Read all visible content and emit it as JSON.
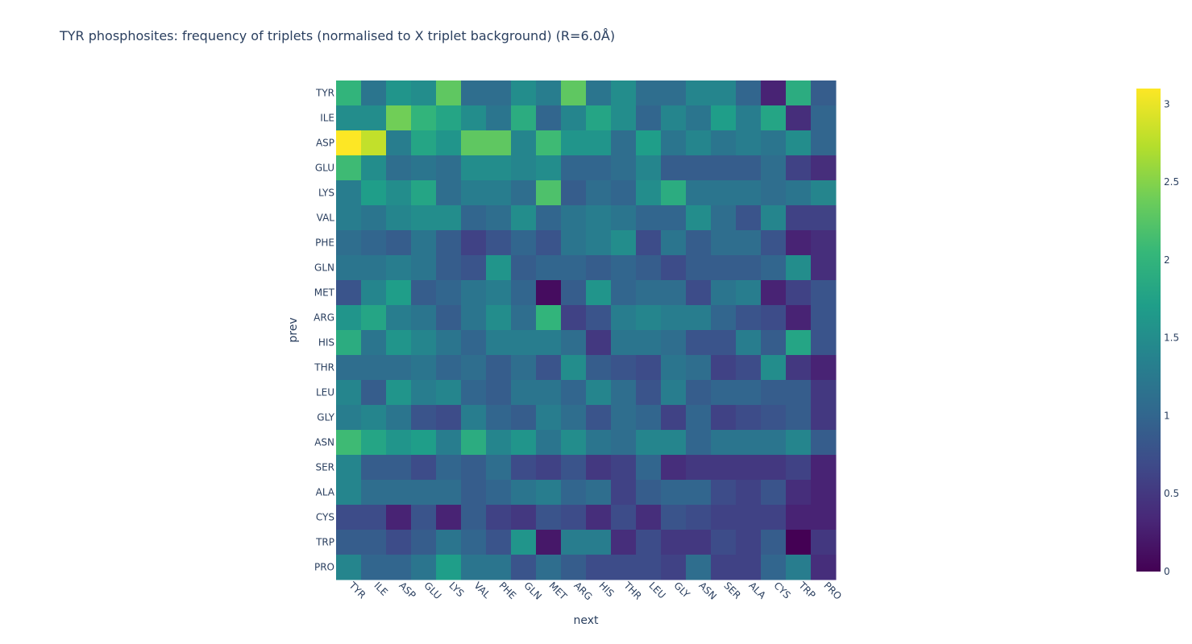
{
  "chart_data": {
    "type": "heatmap",
    "title": "TYR phosphosites: frequency of triplets (normalised to X triplet background) (R=6.0Å)",
    "xlabel": "next",
    "ylabel": "prev",
    "x": [
      "TYR",
      "ILE",
      "ASP",
      "GLU",
      "LYS",
      "VAL",
      "PHE",
      "GLN",
      "MET",
      "ARG",
      "HIS",
      "THR",
      "LEU",
      "GLY",
      "ASN",
      "SER",
      "ALA",
      "CYS",
      "TRP",
      "PRO"
    ],
    "y": [
      "TYR",
      "ILE",
      "ASP",
      "GLU",
      "LYS",
      "VAL",
      "PHE",
      "GLN",
      "MET",
      "ARG",
      "HIS",
      "THR",
      "LEU",
      "GLY",
      "ASN",
      "SER",
      "ALA",
      "CYS",
      "TRP",
      "PRO"
    ],
    "zmin": 0,
    "zmax": 3.1,
    "colorscale": "Viridis",
    "colorbar_ticks": [
      0,
      0.5,
      1,
      1.5,
      2,
      2.5,
      3
    ],
    "colorbar_tick_labels": [
      "0",
      "0.5",
      "1",
      "1.5",
      "2",
      "2.5",
      "3"
    ],
    "z": [
      [
        2.0,
        1.2,
        1.6,
        1.5,
        2.3,
        1.1,
        1.1,
        1.5,
        1.3,
        2.3,
        1.2,
        1.5,
        1.1,
        1.1,
        1.4,
        1.4,
        1.0,
        0.3,
        1.9,
        0.9
      ],
      [
        1.5,
        1.5,
        2.4,
        2.0,
        1.8,
        1.5,
        1.2,
        1.9,
        1.0,
        1.4,
        1.8,
        1.5,
        1.0,
        1.4,
        1.2,
        1.7,
        1.3,
        1.8,
        0.4,
        1.0
      ],
      [
        3.1,
        2.8,
        1.3,
        1.8,
        1.6,
        2.3,
        2.3,
        1.4,
        2.1,
        1.6,
        1.6,
        1.1,
        1.7,
        1.2,
        1.4,
        1.2,
        1.3,
        1.2,
        1.5,
        1.0
      ],
      [
        2.1,
        1.5,
        1.1,
        1.2,
        1.1,
        1.5,
        1.5,
        1.4,
        1.5,
        1.0,
        1.0,
        1.1,
        1.4,
        0.9,
        0.9,
        0.9,
        0.9,
        1.1,
        0.6,
        0.4
      ],
      [
        1.3,
        1.7,
        1.5,
        1.8,
        1.1,
        1.3,
        1.3,
        1.1,
        2.2,
        0.9,
        1.1,
        1.0,
        1.5,
        1.9,
        1.2,
        1.2,
        1.2,
        1.1,
        1.2,
        1.4
      ],
      [
        1.3,
        1.2,
        1.4,
        1.5,
        1.5,
        1.0,
        1.1,
        1.5,
        1.0,
        1.2,
        1.3,
        1.2,
        1.0,
        1.0,
        1.5,
        1.1,
        0.8,
        1.4,
        0.6,
        0.6
      ],
      [
        1.1,
        1.0,
        0.9,
        1.2,
        0.9,
        0.6,
        0.8,
        1.0,
        0.8,
        1.2,
        1.3,
        1.5,
        0.7,
        1.2,
        0.9,
        1.1,
        1.1,
        0.8,
        0.3,
        0.4
      ],
      [
        1.2,
        1.2,
        1.3,
        1.2,
        0.9,
        0.8,
        1.6,
        0.9,
        1.0,
        1.0,
        0.9,
        1.0,
        0.9,
        0.7,
        0.9,
        0.9,
        0.9,
        1.0,
        1.5,
        0.4
      ],
      [
        0.8,
        1.4,
        1.7,
        0.9,
        1.0,
        1.2,
        1.3,
        1.0,
        0.1,
        0.9,
        1.6,
        1.0,
        1.1,
        1.1,
        0.7,
        1.2,
        1.3,
        0.3,
        0.6,
        0.8
      ],
      [
        1.6,
        1.8,
        1.3,
        1.2,
        0.9,
        1.2,
        1.5,
        1.1,
        2.0,
        0.6,
        0.8,
        1.3,
        1.4,
        1.3,
        1.3,
        1.0,
        0.8,
        0.7,
        0.3,
        0.8
      ],
      [
        1.9,
        1.2,
        1.6,
        1.4,
        1.2,
        1.0,
        1.3,
        1.3,
        1.3,
        1.1,
        0.5,
        1.2,
        1.2,
        1.1,
        0.8,
        0.8,
        1.3,
        0.9,
        1.8,
        0.8
      ],
      [
        1.1,
        1.1,
        1.1,
        1.2,
        1.0,
        1.1,
        0.9,
        1.1,
        0.8,
        1.5,
        0.9,
        0.8,
        0.7,
        1.2,
        1.1,
        0.6,
        0.7,
        1.5,
        0.5,
        0.3
      ],
      [
        1.4,
        0.9,
        1.6,
        1.3,
        1.4,
        1.0,
        0.9,
        1.2,
        1.2,
        1.0,
        1.4,
        1.1,
        0.8,
        1.3,
        0.9,
        1.0,
        1.0,
        0.9,
        0.9,
        0.5
      ],
      [
        1.3,
        1.4,
        1.2,
        0.8,
        0.7,
        1.3,
        1.0,
        0.9,
        1.3,
        1.1,
        0.8,
        1.1,
        1.0,
        0.6,
        1.0,
        0.6,
        0.7,
        0.8,
        0.9,
        0.5
      ],
      [
        2.1,
        1.8,
        1.6,
        1.7,
        1.3,
        1.9,
        1.4,
        1.6,
        1.2,
        1.5,
        1.2,
        1.1,
        1.4,
        1.4,
        1.0,
        1.2,
        1.2,
        1.2,
        1.4,
        0.9
      ],
      [
        1.4,
        0.9,
        0.9,
        0.7,
        1.0,
        0.9,
        1.1,
        0.7,
        0.6,
        0.8,
        0.5,
        0.6,
        1.0,
        0.4,
        0.5,
        0.5,
        0.5,
        0.5,
        0.6,
        0.3
      ],
      [
        1.4,
        1.1,
        1.1,
        1.1,
        1.1,
        0.9,
        1.0,
        1.2,
        1.3,
        1.0,
        1.1,
        0.6,
        0.9,
        1.0,
        1.0,
        0.7,
        0.6,
        0.8,
        0.4,
        0.3
      ],
      [
        0.7,
        0.7,
        0.3,
        0.8,
        0.3,
        0.9,
        0.6,
        0.5,
        0.8,
        0.7,
        0.4,
        0.7,
        0.4,
        0.8,
        0.7,
        0.6,
        0.6,
        0.6,
        0.3,
        0.3
      ],
      [
        0.9,
        0.9,
        0.7,
        0.9,
        1.2,
        1.0,
        0.8,
        1.6,
        0.2,
        1.3,
        1.3,
        0.4,
        0.7,
        0.5,
        0.5,
        0.7,
        0.6,
        0.9,
        0.0,
        0.5
      ],
      [
        1.4,
        1.0,
        1.0,
        1.2,
        1.7,
        1.2,
        1.2,
        0.8,
        1.1,
        0.9,
        0.7,
        0.7,
        0.7,
        0.6,
        1.1,
        0.6,
        0.6,
        1.0,
        1.3,
        0.4
      ]
    ]
  }
}
